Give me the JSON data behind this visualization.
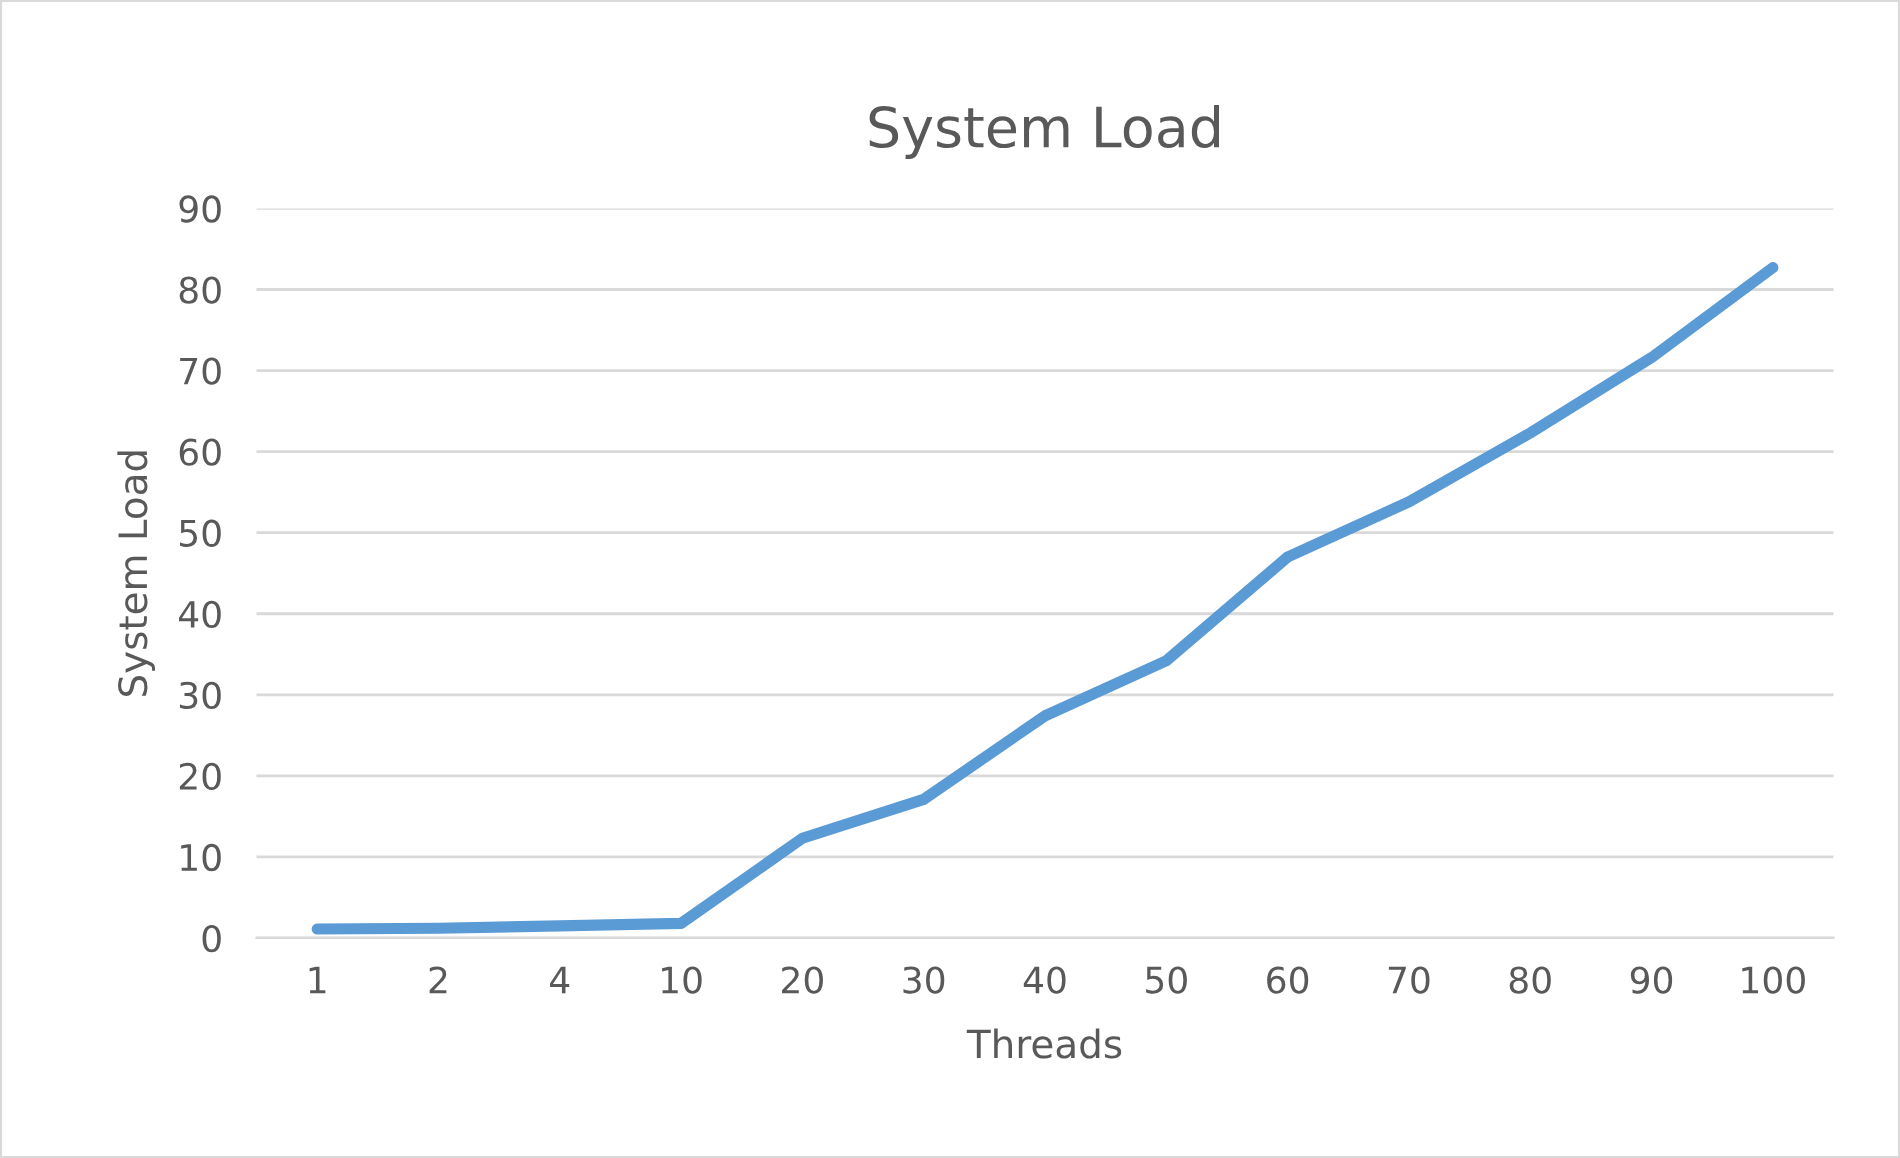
{
  "chart_data": {
    "type": "line",
    "title": "System Load",
    "xlabel": "Threads",
    "ylabel": "System Load",
    "categories": [
      "1",
      "2",
      "4",
      "10",
      "20",
      "30",
      "40",
      "50",
      "60",
      "70",
      "80",
      "90",
      "100"
    ],
    "series": [
      {
        "color": "#5b9bd5",
        "values": [
          1.1,
          1.2,
          1.5,
          1.8,
          12.3,
          17.1,
          27.4,
          34.2,
          47.0,
          53.8,
          62.3,
          71.6,
          82.7
        ]
      }
    ],
    "ylim": [
      0,
      90
    ],
    "yticks": [
      0,
      10,
      20,
      30,
      40,
      50,
      60,
      70,
      80,
      90
    ],
    "grid": "y",
    "legend": false,
    "marker": "none",
    "line_style": "solid"
  }
}
